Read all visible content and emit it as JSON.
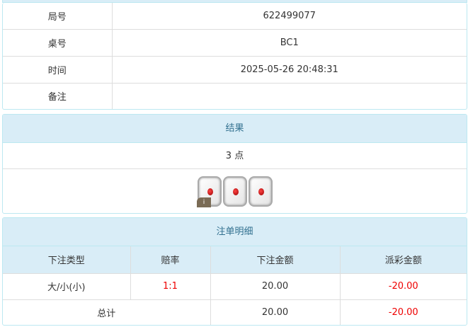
{
  "info": {
    "rows": [
      {
        "label": "局号",
        "value": "622499077"
      },
      {
        "label": "桌号",
        "value": "BC1"
      },
      {
        "label": "时间",
        "value": "2025-05-26 20:48:31"
      },
      {
        "label": "备注",
        "value": ""
      }
    ]
  },
  "result": {
    "title": "结果",
    "points": "3 点",
    "dice": [
      1,
      1,
      1
    ],
    "info_badge": "i"
  },
  "bets": {
    "title": "注单明细",
    "headers": [
      "下注类型",
      "赔率",
      "下注金额",
      "派彩金额"
    ],
    "rows": [
      {
        "type": "大/小(小)",
        "odds": "1:1",
        "amount": "20.00",
        "payout": "-20.00"
      }
    ],
    "total": {
      "label": "总计",
      "amount": "20.00",
      "payout": "-20.00"
    }
  },
  "colors": {
    "header_bg": "#d9edf7",
    "header_text": "#31708f",
    "negative": "#e00000"
  }
}
